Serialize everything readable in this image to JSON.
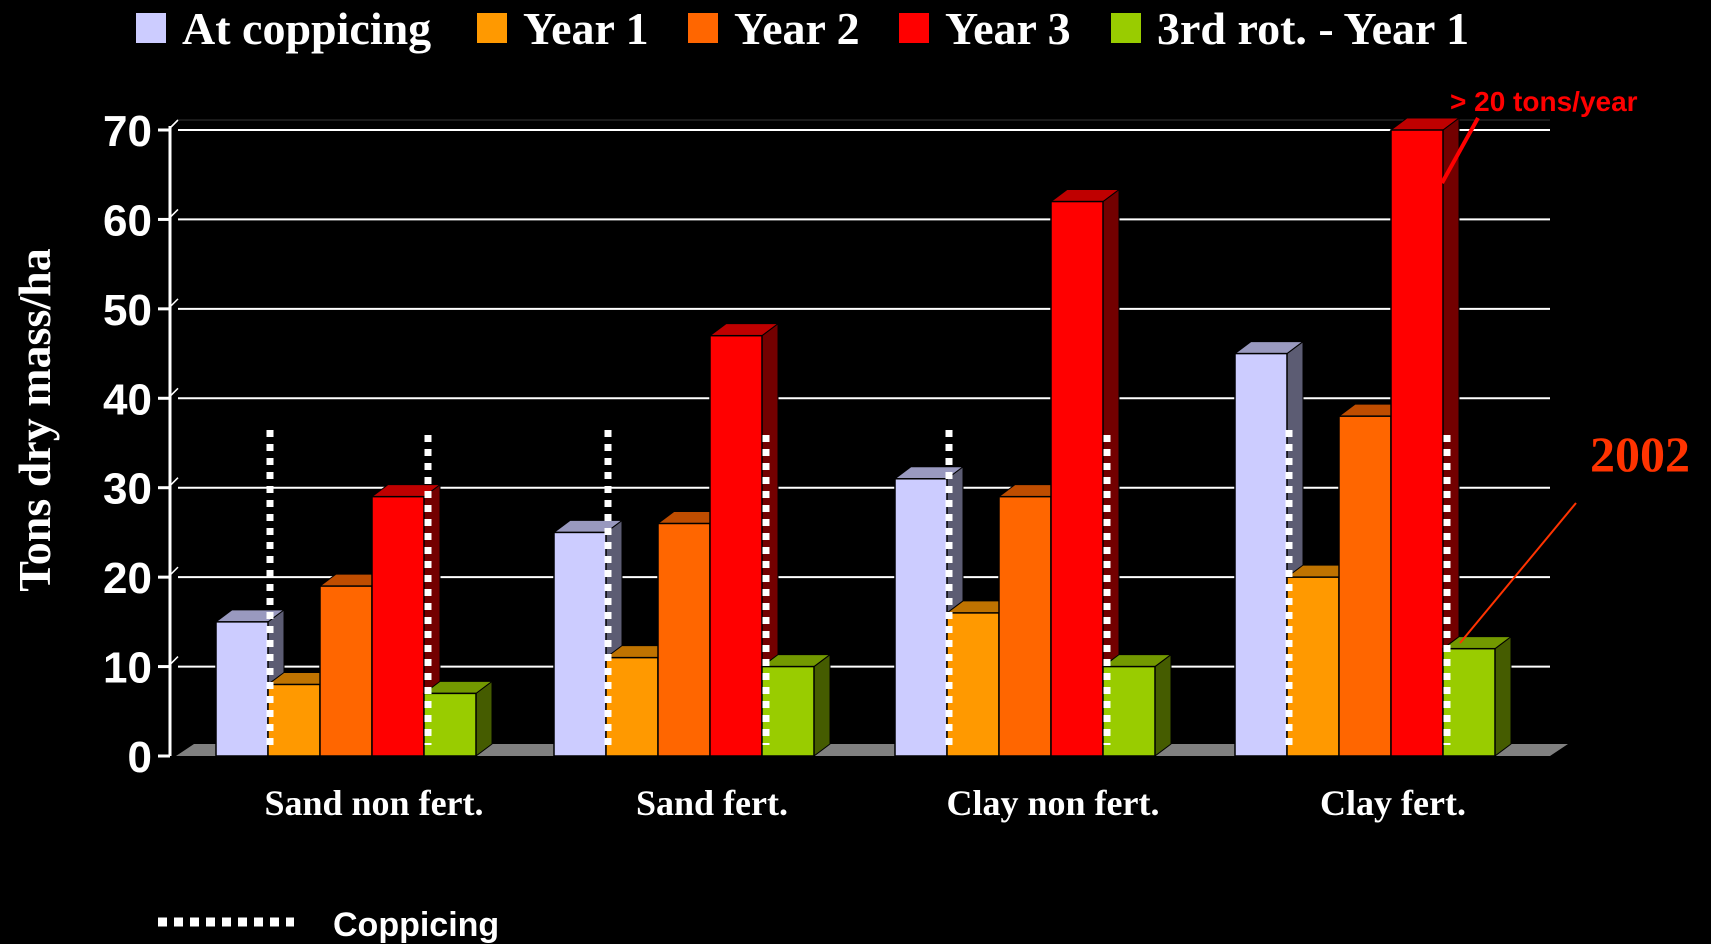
{
  "chart_data": {
    "type": "bar",
    "title": "",
    "xlabel": "",
    "ylabel": "Tons dry mass/ha",
    "ylim": [
      0,
      70
    ],
    "yticks": [
      "0",
      "10",
      "20",
      "30",
      "40",
      "50",
      "60",
      "70"
    ],
    "grid": true,
    "legend_position": "top",
    "categories": [
      "Sand non fert.",
      "Sand fert.",
      "Clay non fert.",
      "Clay fert."
    ],
    "series": [
      {
        "name": "At coppicing",
        "color": "#ccccff",
        "values": [
          15,
          25,
          31,
          45
        ]
      },
      {
        "name": "Year 1",
        "color": "#ff9900",
        "values": [
          8,
          11,
          16,
          20
        ]
      },
      {
        "name": "Year 2",
        "color": "#ff6600",
        "values": [
          19,
          26,
          29,
          38
        ]
      },
      {
        "name": "Year 3",
        "color": "#ff0000",
        "values": [
          29,
          47,
          62,
          70
        ]
      },
      {
        "name": "3rd rot. - Year 1",
        "color": "#99cc00",
        "values": [
          7,
          10,
          10,
          12
        ]
      }
    ],
    "annotations": {
      "top_note": "> 20 tons/year",
      "year_note": "2002",
      "coppicing_legend": "Coppicing"
    }
  }
}
